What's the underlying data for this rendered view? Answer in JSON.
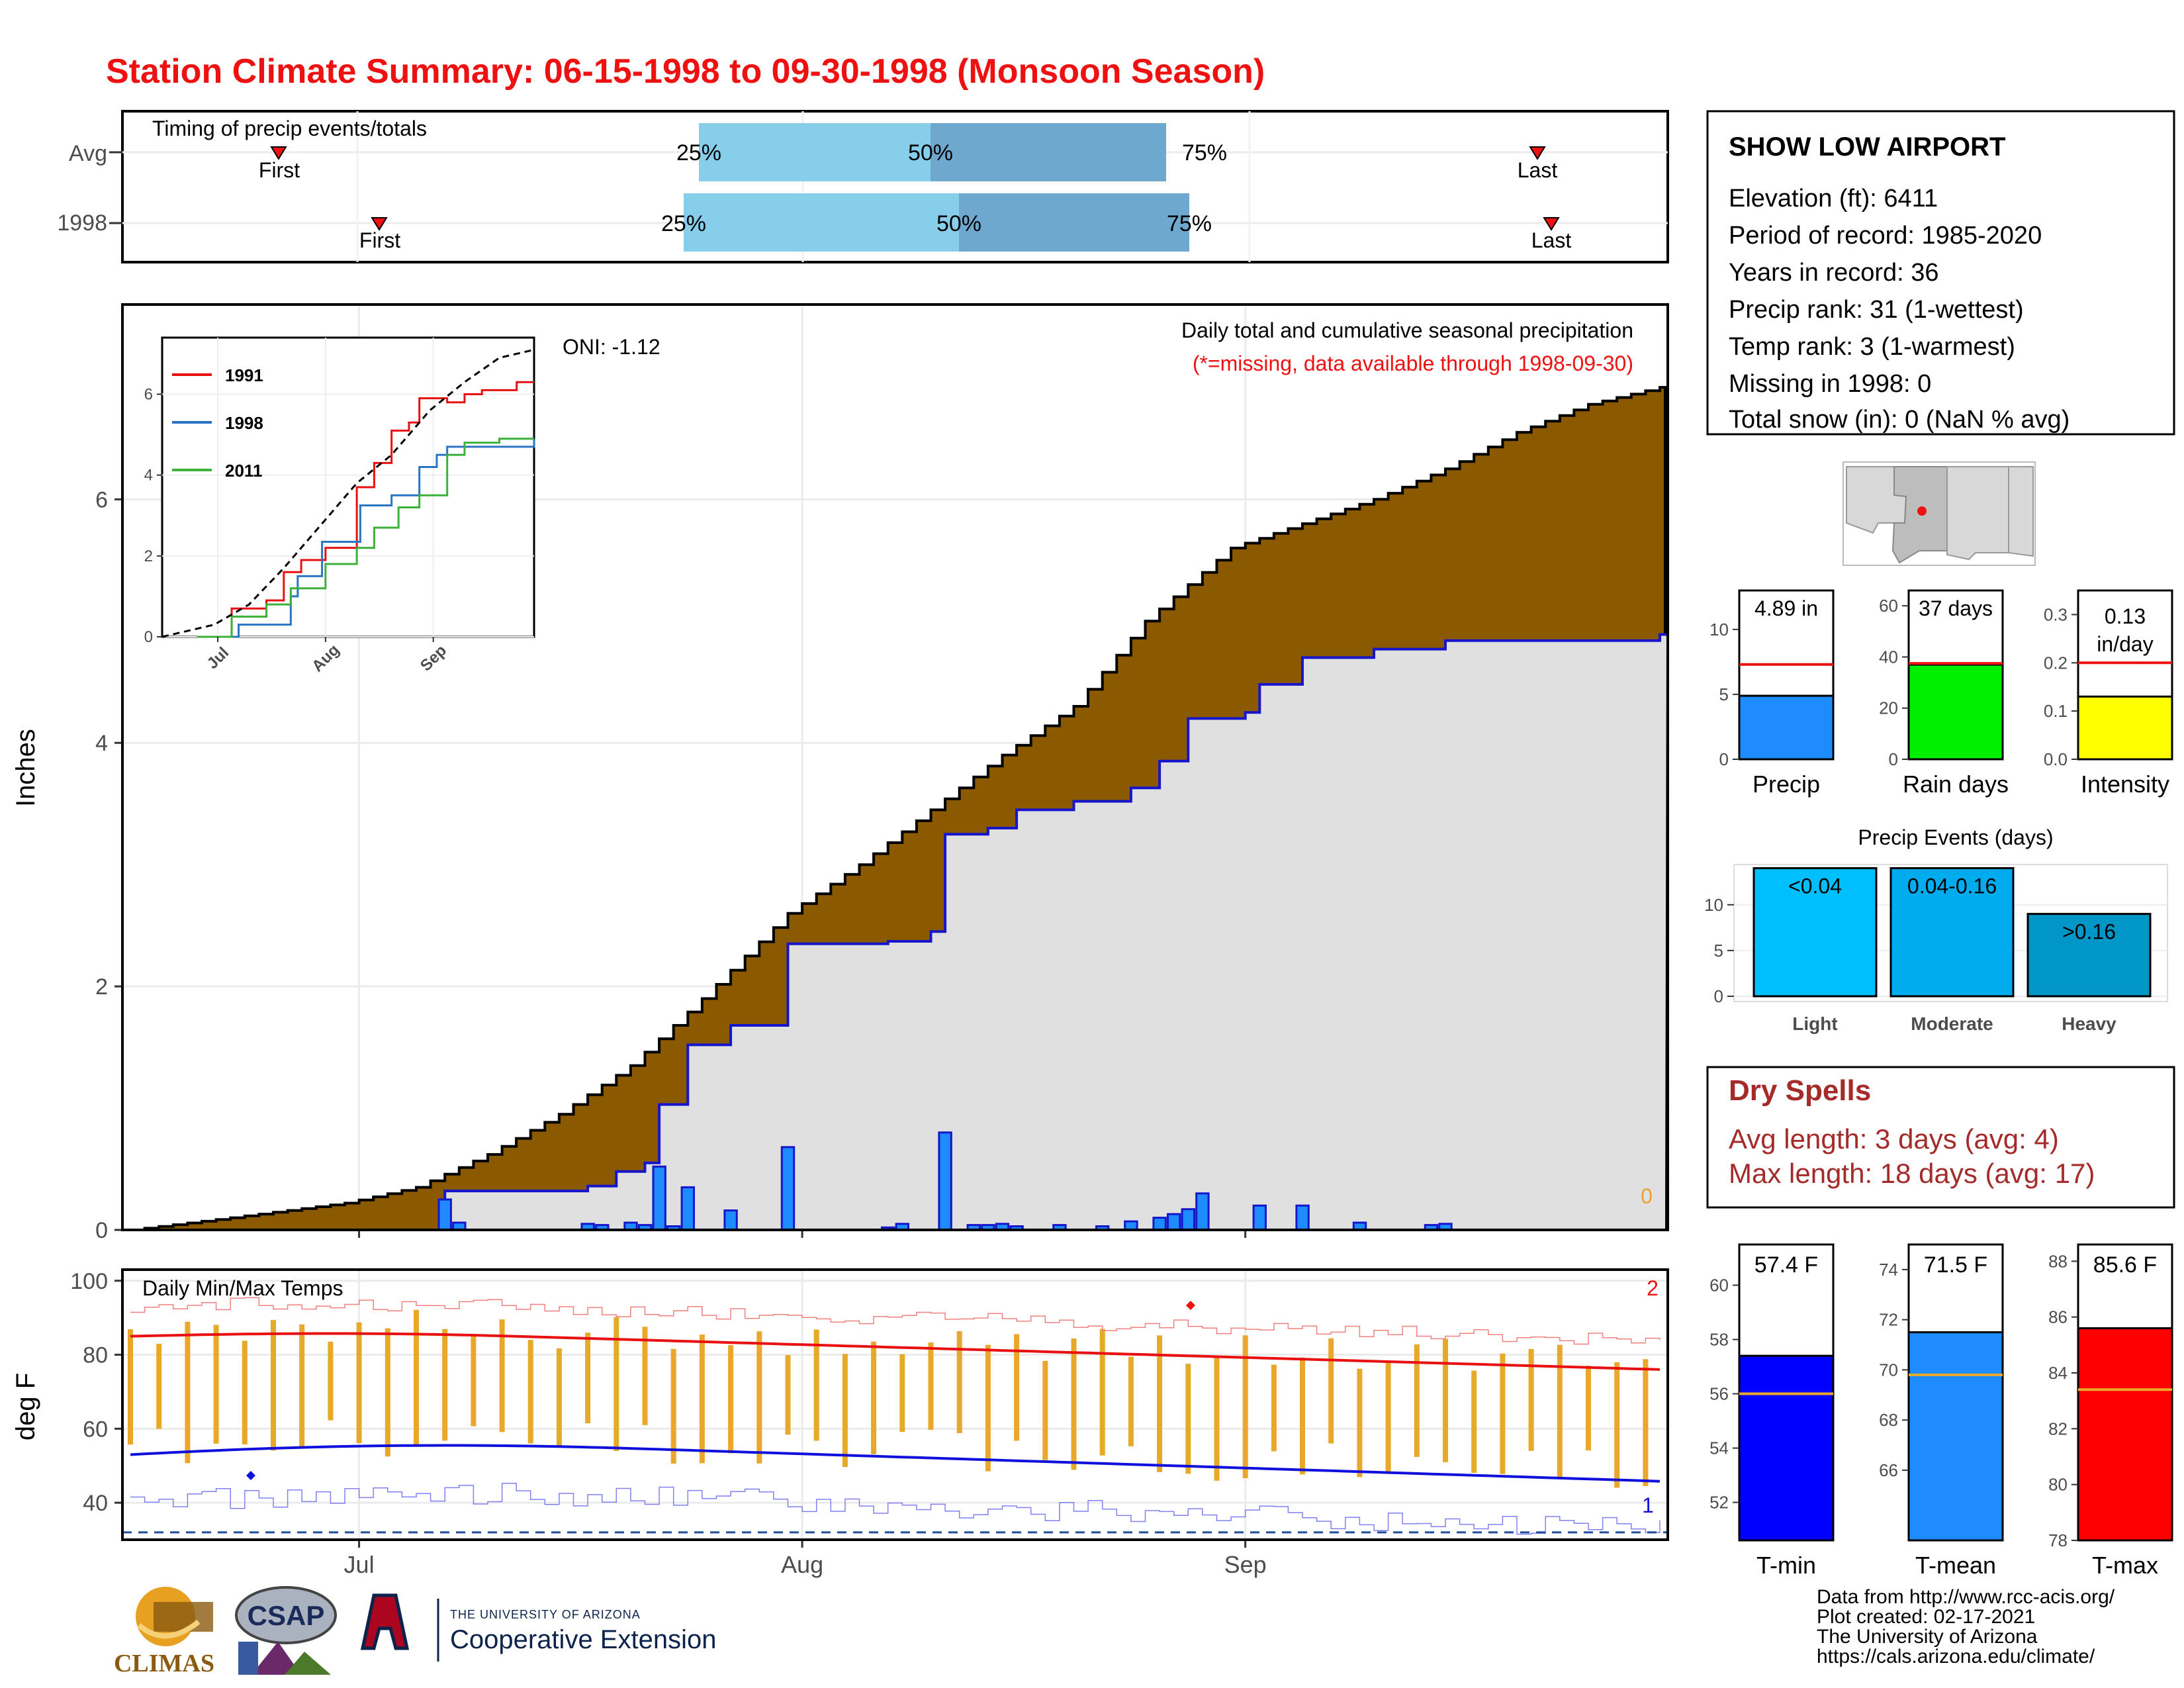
{
  "title": "Station Climate Summary: 06-15-1998 to 09-30-1998 (Monsoon Season)",
  "colors": {
    "title": "#ee1111",
    "cum_avg_fill": "#8b5a00",
    "cum_obs_fill": "#e0e0e0",
    "cum_obs_line": "#1515cc",
    "daily_bar": "#1e8cff",
    "quartile_light": "#87ceeb",
    "quartile_dark": "#6fa8cf",
    "temp_bar": "#e8a92a",
    "tmax_line": "#e81010",
    "tmin_line": "#1010dd",
    "dry_spell_text": "#a52a2a"
  },
  "timing_panel": {
    "label": "Timing of precip events/totals",
    "rows": [
      {
        "label": "Avg",
        "first_label": "First",
        "last_label": "Last",
        "q25": "25%",
        "q50": "50%",
        "q75": "75%"
      },
      {
        "label": "1998",
        "first_label": "First",
        "last_label": "Last",
        "q25": "25%",
        "q50": "50%",
        "q75": "75%"
      }
    ]
  },
  "main_panel": {
    "ylabel": "Inches",
    "caption": "Daily total and cumulative seasonal precipitation",
    "missing_note": "(*=missing, data available through 1998-09-30)",
    "oni": "ONI: -1.12",
    "missing_count": "0",
    "yticks": [
      "0",
      "2",
      "4",
      "6"
    ]
  },
  "inset": {
    "legend": [
      "1991",
      "1998",
      "2011"
    ],
    "yticks": [
      "0",
      "2",
      "4",
      "6"
    ],
    "xticks": [
      "Jul",
      "Aug",
      "Sep"
    ]
  },
  "temp_panel": {
    "label": "Daily Min/Max Temps",
    "ylabel": "deg F",
    "yticks": [
      "40",
      "60",
      "80",
      "100"
    ],
    "xticks": [
      "Jul",
      "Aug",
      "Sep"
    ],
    "max_record_count": "2",
    "min_record_count": "1"
  },
  "station": {
    "name": "SHOW LOW AIRPORT",
    "lines": [
      "Elevation (ft): 6411",
      "Period of record: 1985-2020",
      "Years in record: 36",
      "Precip rank: 31 (1-wettest)",
      "Temp rank: 3 (1-warmest)",
      "Missing in 1998: 0",
      "Total snow (in): 0 (NaN % avg)"
    ]
  },
  "summary_bars": [
    {
      "label": "Precip",
      "value_text": "4.89 in",
      "value": 4.89,
      "avg": 7.3,
      "ylim": [
        0,
        13
      ],
      "ticks": [
        "0",
        "5",
        "10"
      ],
      "color": "#1e8cff"
    },
    {
      "label": "Rain days",
      "value_text": "37 days",
      "value": 37,
      "avg": 37.5,
      "ylim": [
        0,
        66
      ],
      "ticks": [
        "0",
        "20",
        "40",
        "60"
      ],
      "color": "#00ee00"
    },
    {
      "label": "Intensity",
      "value_text": "0.13 in/day",
      "value": 0.13,
      "avg": 0.2,
      "ylim": [
        0,
        0.35
      ],
      "ticks": [
        "0.0",
        "0.1",
        "0.2",
        "0.3"
      ],
      "color": "#ffff00"
    }
  ],
  "precip_events": {
    "title": "Precip Events (days)",
    "categories": [
      "Light",
      "Moderate",
      "Heavy"
    ],
    "bar_labels": [
      "<0.04",
      "0.04-0.16",
      ">0.16"
    ],
    "values": [
      14,
      14,
      9
    ],
    "ticks": [
      "0",
      "5",
      "10"
    ],
    "colors": [
      "#00bfff",
      "#00aced",
      "#0096c8"
    ]
  },
  "dry_spells": {
    "title": "Dry Spells",
    "avg_length": "Avg length: 3 days (avg: 4)",
    "max_length": "Max length: 18 days (avg: 17)"
  },
  "temp_bars": [
    {
      "label": "T-min",
      "value_text": "57.4 F",
      "value": 57.4,
      "avg": 56.0,
      "ylim": [
        50.6,
        61.5
      ],
      "ticks": [
        "52",
        "54",
        "56",
        "58",
        "60"
      ],
      "color": "#0000ff"
    },
    {
      "label": "T-mean",
      "value_text": "71.5 F",
      "value": 71.5,
      "avg": 69.8,
      "ylim": [
        63.2,
        75.0
      ],
      "ticks": [
        "66",
        "68",
        "70",
        "72",
        "74"
      ],
      "color": "#1e8cff"
    },
    {
      "label": "T-max",
      "value_text": "85.6 F",
      "value": 85.6,
      "avg": 83.4,
      "ylim": [
        78.0,
        88.6
      ],
      "ticks": [
        "78",
        "80",
        "82",
        "84",
        "86",
        "88"
      ],
      "color": "#ff0000"
    }
  ],
  "footer": {
    "lines": [
      "Data from http://www.rcc-acis.org/",
      "Plot created: 02-17-2021",
      "The University of Arizona",
      "https://cals.arizona.edu/climate/"
    ],
    "logo_climas": "CLIMAS",
    "logo_csap": "CSAP",
    "logo_ua_small": "THE UNIVERSITY OF ARIZONA",
    "logo_ua_big": "Cooperative Extension"
  },
  "chart_data": {
    "type": "area",
    "title": "Station Climate Summary: 06-15-1998 to 09-30-1998 (Monsoon Season)",
    "ylabel": "Inches",
    "x_range": [
      "1998-06-15",
      "1998-09-30"
    ],
    "ylim": [
      0,
      7.6
    ],
    "grid": true,
    "cumulative_avg_points": [
      [
        "1998-06-15",
        0.0
      ],
      [
        "1998-06-22",
        0.1
      ],
      [
        "1998-06-30",
        0.22
      ],
      [
        "1998-07-05",
        0.35
      ],
      [
        "1998-07-10",
        0.62
      ],
      [
        "1998-07-15",
        0.95
      ],
      [
        "1998-07-20",
        1.35
      ],
      [
        "1998-07-25",
        1.9
      ],
      [
        "1998-07-31",
        2.6
      ],
      [
        "1998-08-05",
        3.0
      ],
      [
        "1998-08-10",
        3.45
      ],
      [
        "1998-08-15",
        3.9
      ],
      [
        "1998-08-20",
        4.3
      ],
      [
        "1998-08-25",
        5.0
      ],
      [
        "1998-08-31",
        5.6
      ],
      [
        "1998-09-05",
        5.8
      ],
      [
        "1998-09-10",
        6.0
      ],
      [
        "1998-09-15",
        6.25
      ],
      [
        "1998-09-20",
        6.55
      ],
      [
        "1998-09-25",
        6.78
      ],
      [
        "1998-09-30",
        6.92
      ]
    ],
    "cumulative_1998_points": [
      [
        "1998-06-15",
        0.0
      ],
      [
        "1998-06-30",
        0.0
      ],
      [
        "1998-07-06",
        0.0
      ],
      [
        "1998-07-07",
        0.32
      ],
      [
        "1998-07-15",
        0.32
      ],
      [
        "1998-07-17",
        0.36
      ],
      [
        "1998-07-19",
        0.48
      ],
      [
        "1998-07-21",
        0.55
      ],
      [
        "1998-07-22",
        1.03
      ],
      [
        "1998-07-24",
        1.52
      ],
      [
        "1998-07-27",
        1.68
      ],
      [
        "1998-07-31",
        2.35
      ],
      [
        "1998-08-07",
        2.37
      ],
      [
        "1998-08-10",
        2.45
      ],
      [
        "1998-08-11",
        3.25
      ],
      [
        "1998-08-14",
        3.3
      ],
      [
        "1998-08-16",
        3.45
      ],
      [
        "1998-08-20",
        3.52
      ],
      [
        "1998-08-24",
        3.63
      ],
      [
        "1998-08-26",
        3.85
      ],
      [
        "1998-08-28",
        4.2
      ],
      [
        "1998-09-01",
        4.25
      ],
      [
        "1998-09-02",
        4.48
      ],
      [
        "1998-09-05",
        4.7
      ],
      [
        "1998-09-10",
        4.77
      ],
      [
        "1998-09-15",
        4.84
      ],
      [
        "1998-09-30",
        4.89
      ]
    ],
    "daily_precip_1998": [
      [
        "1998-07-07",
        0.25
      ],
      [
        "1998-07-08",
        0.06
      ],
      [
        "1998-07-17",
        0.05
      ],
      [
        "1998-07-18",
        0.04
      ],
      [
        "1998-07-20",
        0.06
      ],
      [
        "1998-07-21",
        0.04
      ],
      [
        "1998-07-22",
        0.52
      ],
      [
        "1998-07-23",
        0.03
      ],
      [
        "1998-07-24",
        0.35
      ],
      [
        "1998-07-27",
        0.16
      ],
      [
        "1998-07-31",
        0.68
      ],
      [
        "1998-08-07",
        0.02
      ],
      [
        "1998-08-08",
        0.05
      ],
      [
        "1998-08-11",
        0.8
      ],
      [
        "1998-08-13",
        0.04
      ],
      [
        "1998-08-14",
        0.04
      ],
      [
        "1998-08-15",
        0.05
      ],
      [
        "1998-08-16",
        0.03
      ],
      [
        "1998-08-19",
        0.04
      ],
      [
        "1998-08-22",
        0.03
      ],
      [
        "1998-08-24",
        0.07
      ],
      [
        "1998-08-26",
        0.1
      ],
      [
        "1998-08-27",
        0.13
      ],
      [
        "1998-08-28",
        0.17
      ],
      [
        "1998-08-29",
        0.3
      ],
      [
        "1998-09-02",
        0.2
      ],
      [
        "1998-09-05",
        0.2
      ],
      [
        "1998-09-09",
        0.06
      ],
      [
        "1998-09-14",
        0.04
      ],
      [
        "1998-09-15",
        0.05
      ]
    ],
    "inset_series": [
      {
        "name": "1991",
        "points": [
          [
            "1998-06-25",
            0.0
          ],
          [
            "1998-07-05",
            0.7
          ],
          [
            "1998-07-15",
            0.9
          ],
          [
            "1998-07-20",
            1.6
          ],
          [
            "1998-07-25",
            1.9
          ],
          [
            "1998-08-01",
            2.2
          ],
          [
            "1998-08-10",
            3.7
          ],
          [
            "1998-08-15",
            4.3
          ],
          [
            "1998-08-20",
            5.1
          ],
          [
            "1998-08-25",
            5.3
          ],
          [
            "1998-08-28",
            5.9
          ],
          [
            "1998-09-05",
            5.8
          ],
          [
            "1998-09-10",
            6.0
          ],
          [
            "1998-09-15",
            6.1
          ],
          [
            "1998-09-25",
            6.3
          ]
        ]
      },
      {
        "name": "1998",
        "points": [
          [
            "1998-06-25",
            0.0
          ],
          [
            "1998-07-07",
            0.3
          ],
          [
            "1998-07-22",
            1.0
          ],
          [
            "1998-07-24",
            1.5
          ],
          [
            "1998-07-31",
            2.35
          ],
          [
            "1998-08-11",
            3.25
          ],
          [
            "1998-08-20",
            3.5
          ],
          [
            "1998-08-28",
            4.2
          ],
          [
            "1998-09-02",
            4.5
          ],
          [
            "1998-09-05",
            4.7
          ],
          [
            "1998-09-30",
            4.89
          ]
        ]
      },
      {
        "name": "2011",
        "points": [
          [
            "1998-06-25",
            0.0
          ],
          [
            "1998-07-05",
            0.5
          ],
          [
            "1998-07-15",
            0.8
          ],
          [
            "1998-07-22",
            1.2
          ],
          [
            "1998-08-01",
            1.8
          ],
          [
            "1998-08-10",
            2.2
          ],
          [
            "1998-08-15",
            2.7
          ],
          [
            "1998-08-22",
            3.2
          ],
          [
            "1998-08-28",
            3.5
          ],
          [
            "1998-09-05",
            4.5
          ],
          [
            "1998-09-10",
            4.8
          ],
          [
            "1998-09-20",
            4.9
          ]
        ]
      },
      {
        "name": "avg",
        "points": [
          [
            "1998-06-15",
            0.0
          ],
          [
            "1998-06-30",
            0.3
          ],
          [
            "1998-07-10",
            0.8
          ],
          [
            "1998-07-20",
            1.7
          ],
          [
            "1998-07-31",
            2.8
          ],
          [
            "1998-08-10",
            3.8
          ],
          [
            "1998-08-20",
            4.5
          ],
          [
            "1998-08-31",
            5.6
          ],
          [
            "1998-09-10",
            6.3
          ],
          [
            "1998-09-20",
            6.9
          ],
          [
            "1998-09-30",
            7.1
          ]
        ]
      }
    ],
    "temperature": {
      "ylim": [
        30,
        103
      ],
      "tmax_avg_start_end": [
        85,
        75
      ],
      "tmin_avg_start_end": [
        53,
        47
      ],
      "freezing_reference": 32
    }
  }
}
